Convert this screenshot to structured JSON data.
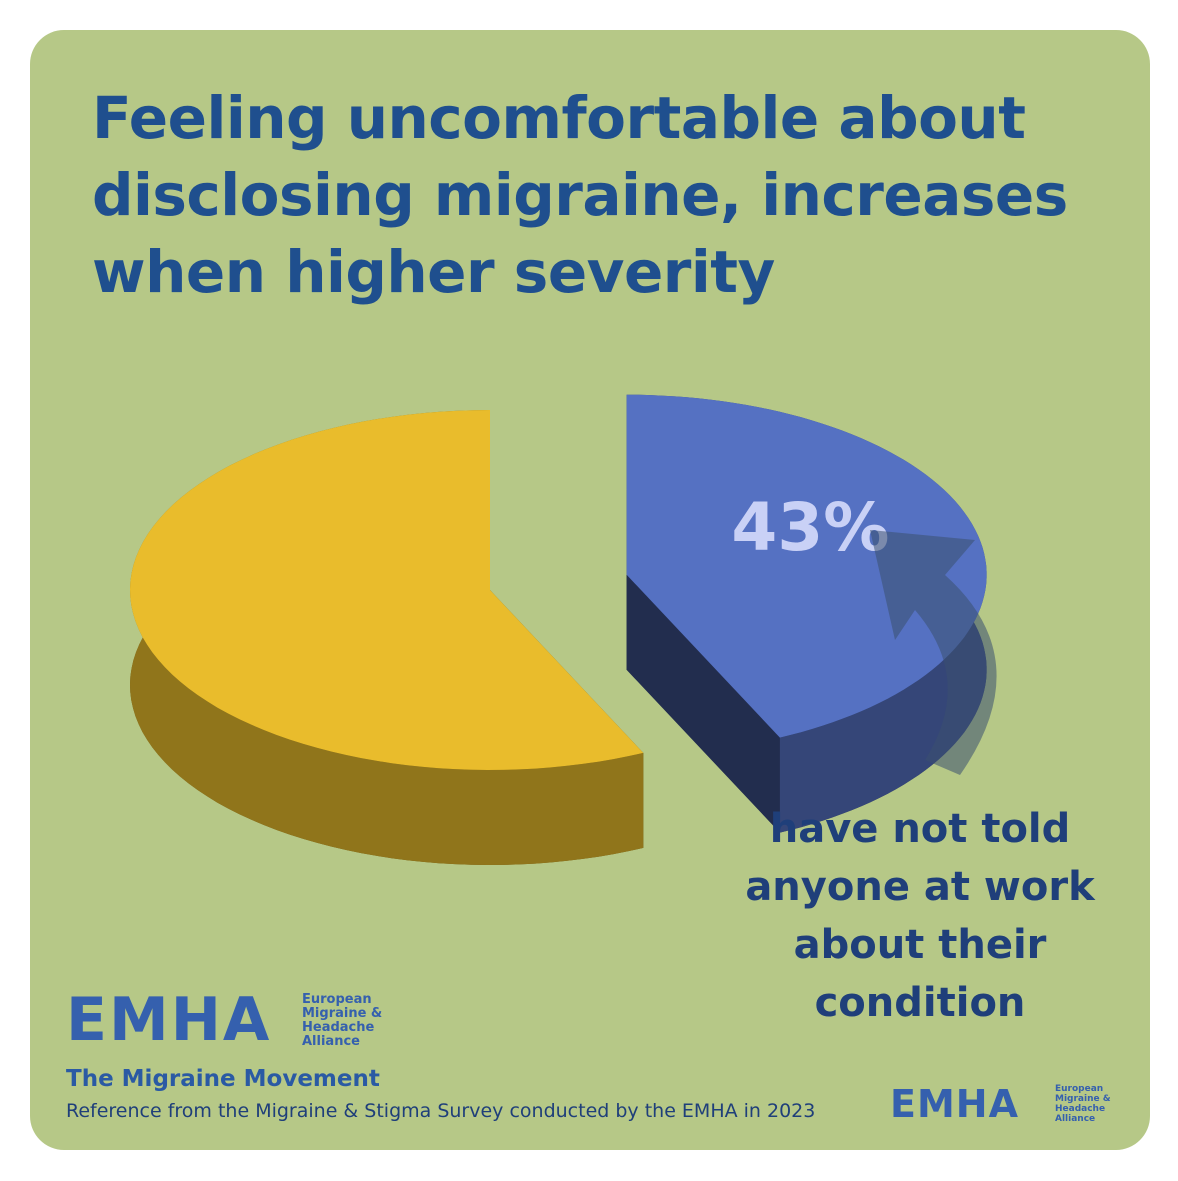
{
  "chart_data": {
    "type": "pie",
    "title": "Feeling uncomfortable about disclosing migraine, increases when higher severity",
    "categories": [
      "have not told anyone at work about their condition",
      null
    ],
    "values": [
      43,
      57
    ],
    "value_labels": [
      "43%",
      null
    ],
    "colors": [
      "#5571c2",
      "#e9bc2c"
    ]
  },
  "branding": {
    "logo": "EMHA",
    "logo_text": "European Migraine & Headache Alliance",
    "tagline": "The Migraine Movement",
    "reference": "Reference from the  Migraine & Stigma Survey conducted by the EMHA in 2023",
    "logo_small": "EMHA",
    "logo_small_text": "European Migraine & Headache Alliance"
  }
}
